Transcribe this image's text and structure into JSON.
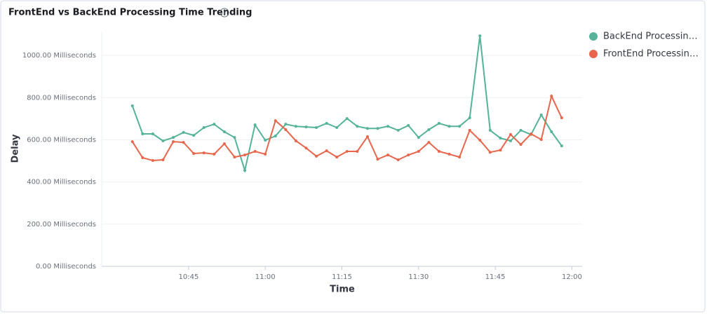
{
  "chart_data": {
    "type": "line",
    "title": "FrontEnd vs BackEnd Processing Time Trending",
    "x_label": "Time",
    "y_label": "Delay",
    "x": [
      "10:34",
      "10:36",
      "10:38",
      "10:40",
      "10:42",
      "10:44",
      "10:46",
      "10:48",
      "10:50",
      "10:52",
      "10:54",
      "10:56",
      "10:58",
      "11:00",
      "11:02",
      "11:04",
      "11:06",
      "11:08",
      "11:10",
      "11:12",
      "11:14",
      "11:16",
      "11:18",
      "11:20",
      "11:22",
      "11:24",
      "11:26",
      "11:28",
      "11:30",
      "11:32",
      "11:34",
      "11:36",
      "11:38",
      "11:40",
      "11:42",
      "11:44",
      "11:46",
      "11:48",
      "11:50",
      "11:52",
      "11:54",
      "11:56",
      "11:58"
    ],
    "series": [
      {
        "name": "BackEnd Processin…",
        "color": "#54b399",
        "values": [
          761,
          628,
          628,
          595,
          611,
          635,
          621,
          658,
          674,
          638,
          611,
          455,
          671,
          598,
          618,
          674,
          664,
          661,
          658,
          678,
          658,
          701,
          664,
          654,
          654,
          664,
          645,
          668,
          611,
          648,
          678,
          664,
          664,
          704,
          1093,
          645,
          608,
          595,
          645,
          625,
          718,
          638,
          571
        ]
      },
      {
        "name": "FrontEnd Processin…",
        "color": "#e7664c",
        "values": [
          591,
          515,
          502,
          505,
          591,
          588,
          535,
          538,
          532,
          581,
          518,
          528,
          545,
          532,
          691,
          648,
          595,
          561,
          522,
          548,
          518,
          545,
          545,
          615,
          508,
          528,
          505,
          528,
          545,
          588,
          545,
          532,
          518,
          645,
          598,
          541,
          551,
          625,
          578,
          628,
          601,
          807,
          704
        ]
      }
    ],
    "xlim": [
      "10:28",
      "12:02"
    ],
    "xticks": [
      "10:45",
      "11:00",
      "11:15",
      "11:30",
      "11:45",
      "12:00"
    ],
    "ylim": [
      0,
      1100
    ],
    "yticks": [
      {
        "value": 0,
        "label": "0.00 Milliseconds"
      },
      {
        "value": 200,
        "label": "200.00 Milliseconds"
      },
      {
        "value": 400,
        "label": "400.00 Milliseconds"
      },
      {
        "value": 600,
        "label": "600.00 Milliseconds"
      },
      {
        "value": 800,
        "label": "800.00 Milliseconds"
      },
      {
        "value": 1000,
        "label": "1000.00 Milliseconds"
      }
    ],
    "grid": true,
    "legend": "top-right"
  }
}
